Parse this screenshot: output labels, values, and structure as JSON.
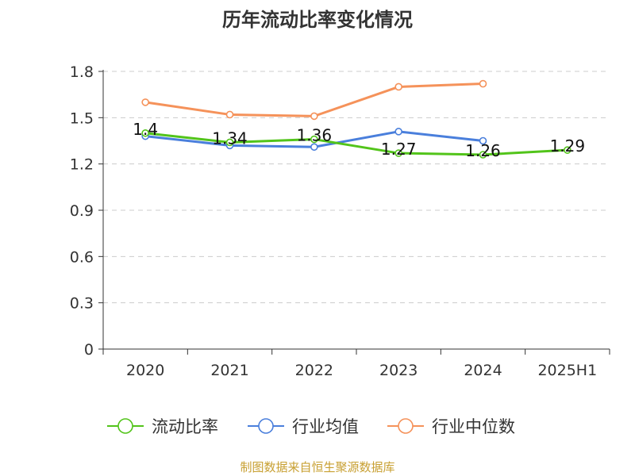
{
  "title": "历年流动比率变化情况",
  "source": "制图数据来自恒生聚源数据库",
  "colors": {
    "current_ratio": "#52c41a",
    "industry_mean": "#4a7fdc",
    "industry_median": "#f5925a",
    "source_text": "#c8a032",
    "grid": "#cccccc",
    "axis": "#333333"
  },
  "chart_data": {
    "type": "line",
    "title": "历年流动比率变化情况",
    "xlabel": "",
    "ylabel": "",
    "categories": [
      "2020",
      "2021",
      "2022",
      "2023",
      "2024",
      "2025H1"
    ],
    "ylim": [
      0,
      1.8
    ],
    "yticks": [
      "0",
      "0.3",
      "0.6",
      "0.9",
      "1.2",
      "1.5",
      "1.8"
    ],
    "grid": true,
    "legend_position": "bottom",
    "series": [
      {
        "name": "流动比率",
        "color": "#52c41a",
        "values": [
          1.4,
          1.34,
          1.36,
          1.27,
          1.26,
          1.29
        ],
        "labels": [
          "1.4",
          "1.34",
          "1.36",
          "1.27",
          "1.26",
          "1.29"
        ]
      },
      {
        "name": "行业均值",
        "color": "#4a7fdc",
        "values": [
          1.38,
          1.32,
          1.31,
          1.41,
          1.35,
          null
        ]
      },
      {
        "name": "行业中位数",
        "color": "#f5925a",
        "values": [
          1.6,
          1.52,
          1.51,
          1.7,
          1.72,
          null
        ]
      }
    ]
  }
}
